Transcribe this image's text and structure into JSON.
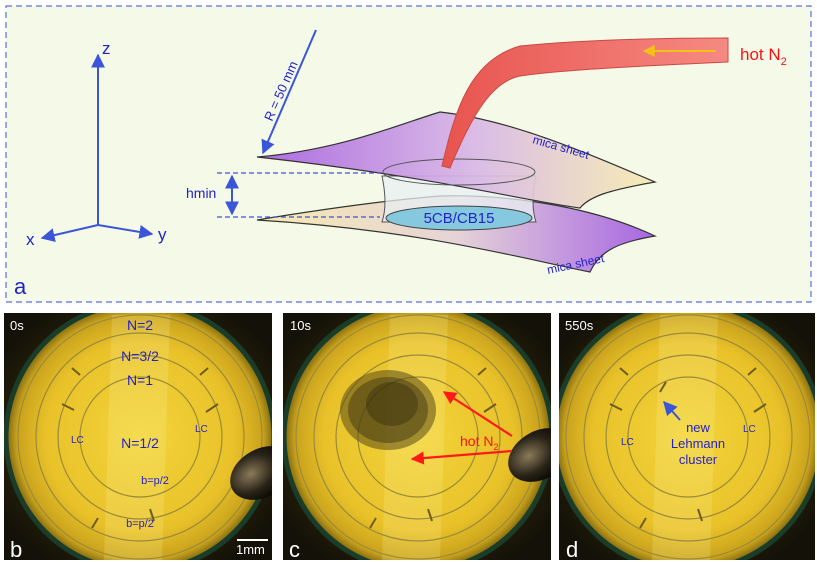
{
  "panel_a": {
    "letter": "a",
    "axis_z": "z",
    "axis_x": "x",
    "axis_y": "y",
    "radius": "R = 50 mm",
    "hmin": "hmin",
    "gas": "hot N",
    "gas_sub": "2",
    "mica_top": "mica sheet",
    "mica_bottom": "mica sheet",
    "sample": "5CB/CB15",
    "colors": {
      "background": "#f5fae8",
      "border": "#5a6fe0",
      "axes": "#3b55d9",
      "nozzle": "#f26a62",
      "arrow": "#f5d21a",
      "mica_purple": "#b36ee6",
      "mica_cream": "#f7eab0"
    }
  },
  "panel_b": {
    "letter": "b",
    "time": "0s",
    "n2": "N=2",
    "n32": "N=3/2",
    "n1": "N=1",
    "n12": "N=1/2",
    "lc_left": "LC",
    "lc_right": "LC",
    "b1": "b=p/2",
    "b2": "b=p/2",
    "scale": "1mm"
  },
  "panel_c": {
    "letter": "c",
    "time": "10s",
    "gas": "hot N",
    "gas_sub": "2"
  },
  "panel_d": {
    "letter": "d",
    "time": "550s",
    "lc_left": "LC",
    "lc_right": "LC",
    "cluster_l1": "new",
    "cluster_l2": "Lehmann",
    "cluster_l3": "cluster"
  }
}
